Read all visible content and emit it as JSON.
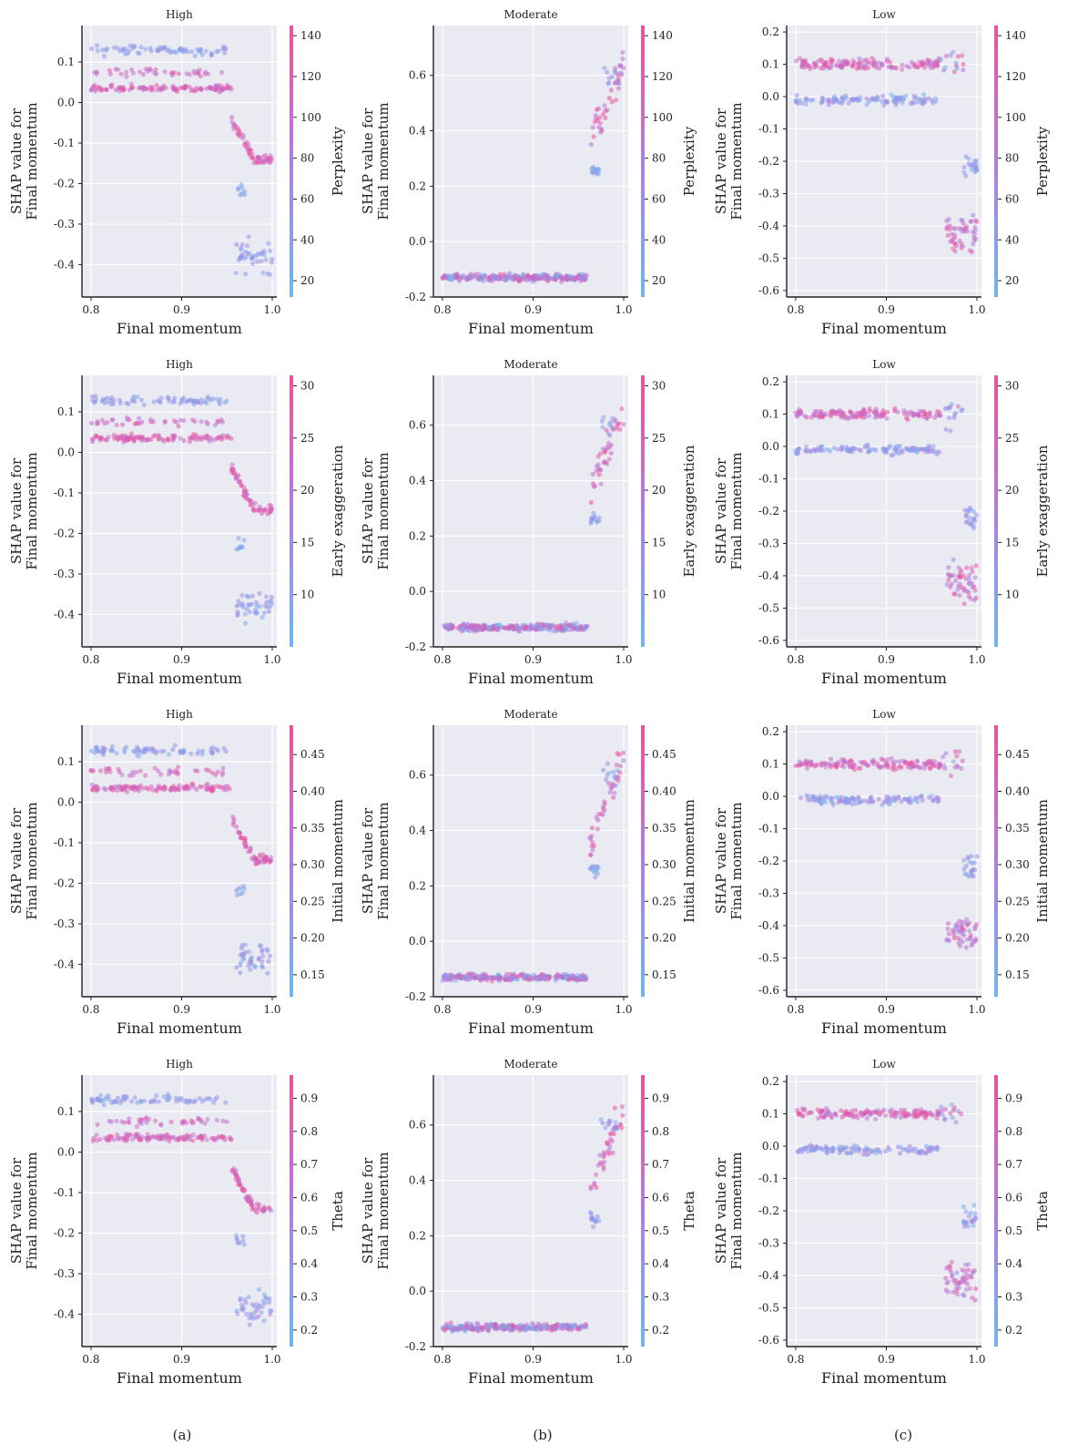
{
  "figure": {
    "panel_labels": [
      "(a)",
      "(b)",
      "(c)"
    ],
    "colorbar_colors": {
      "low": "#6fb6f0",
      "mid": "#b07ee0",
      "high": "#f0509a"
    },
    "plot_bg": "#eaeaf2"
  },
  "chart_data": [
    {
      "type": "scatter",
      "title": "High",
      "xlabel": "Final momentum",
      "ylabel": [
        "SHAP value for",
        "Final momentum"
      ],
      "xlim": [
        0.79,
        1.005
      ],
      "ylim": [
        -0.48,
        0.19
      ],
      "xticks": [
        "0.8",
        "0.9",
        "1.0"
      ],
      "yticks": [
        "0.1",
        "0.0",
        "-0.1",
        "-0.2",
        "-0.3",
        "-0.4"
      ],
      "colorbar": {
        "label": "Perplexity",
        "range": [
          12,
          145
        ],
        "ticks": [
          "20",
          "40",
          "60",
          "80",
          "100",
          "120",
          "140"
        ]
      },
      "profile": "high",
      "series": [
        {
          "name": "upper band",
          "x": [
            0.8,
            0.85,
            0.9,
            0.95
          ],
          "y": [
            0.13,
            0.14,
            0.12,
            0.12
          ]
        },
        {
          "name": "lower band",
          "x": [
            0.8,
            0.85,
            0.9,
            0.95
          ],
          "y": [
            0.03,
            0.04,
            0.035,
            0.04
          ]
        },
        {
          "name": "tail",
          "x": [
            0.96,
            0.98,
            1.0
          ],
          "y": [
            -0.08,
            -0.13,
            -0.14
          ]
        },
        {
          "name": "outliers",
          "x": [
            0.97,
            0.99,
            1.0
          ],
          "y": [
            -0.38,
            -0.42,
            -0.35
          ]
        }
      ]
    },
    {
      "type": "scatter",
      "title": "Moderate",
      "xlabel": "Final momentum",
      "ylabel": [
        "SHAP value for",
        "Final momentum"
      ],
      "xlim": [
        0.79,
        1.005
      ],
      "ylim": [
        -0.2,
        0.78
      ],
      "xticks": [
        "0.8",
        "0.9",
        "1.0"
      ],
      "yticks": [
        "0.6",
        "0.4",
        "0.2",
        "0.0",
        "-0.2"
      ],
      "colorbar": {
        "label": "Perplexity",
        "range": [
          12,
          145
        ],
        "ticks": [
          "20",
          "40",
          "60",
          "80",
          "100",
          "120",
          "140"
        ]
      },
      "profile": "moderate",
      "series": [
        {
          "name": "flat band",
          "x": [
            0.8,
            0.88,
            0.96
          ],
          "y": [
            -0.13,
            -0.13,
            -0.13
          ]
        },
        {
          "name": "rising",
          "x": [
            0.965,
            0.98,
            0.995
          ],
          "y": [
            0.3,
            0.5,
            0.65
          ]
        }
      ]
    },
    {
      "type": "scatter",
      "title": "Low",
      "xlabel": "Final momentum",
      "ylabel": [
        "SHAP value for",
        "Final momentum"
      ],
      "xlim": [
        0.79,
        1.005
      ],
      "ylim": [
        -0.62,
        0.22
      ],
      "xticks": [
        "0.8",
        "0.9",
        "1.0"
      ],
      "yticks": [
        "0.2",
        "0.1",
        "0.0",
        "-0.1",
        "-0.2",
        "-0.3",
        "-0.4",
        "-0.5",
        "-0.6"
      ],
      "colorbar": {
        "label": "Perplexity",
        "range": [
          12,
          145
        ],
        "ticks": [
          "20",
          "40",
          "60",
          "80",
          "100",
          "120",
          "140"
        ]
      },
      "profile": "low",
      "series": [
        {
          "name": "upper band",
          "x": [
            0.8,
            0.88,
            0.96
          ],
          "y": [
            0.11,
            0.1,
            0.12
          ]
        },
        {
          "name": "lower band",
          "x": [
            0.8,
            0.88,
            0.96
          ],
          "y": [
            0.0,
            -0.01,
            0.0
          ]
        },
        {
          "name": "tail",
          "x": [
            0.97,
            0.99,
            1.0
          ],
          "y": [
            -0.4,
            -0.45,
            -0.2
          ]
        }
      ]
    },
    {
      "type": "scatter",
      "title": "High",
      "xlabel": "Final momentum",
      "ylabel": [
        "SHAP value for",
        "Final momentum"
      ],
      "xlim": [
        0.79,
        1.005
      ],
      "ylim": [
        -0.48,
        0.19
      ],
      "xticks": [
        "0.8",
        "0.9",
        "1.0"
      ],
      "yticks": [
        "0.1",
        "0.0",
        "-0.1",
        "-0.2",
        "-0.3",
        "-0.4"
      ],
      "colorbar": {
        "label": "Early exaggeration",
        "range": [
          5,
          31
        ],
        "ticks": [
          "10",
          "15",
          "20",
          "25",
          "30"
        ]
      },
      "profile": "high",
      "series": [
        {
          "name": "upper band",
          "x": [
            0.8,
            0.85,
            0.9,
            0.95
          ],
          "y": [
            0.13,
            0.14,
            0.12,
            0.12
          ]
        },
        {
          "name": "lower band",
          "x": [
            0.8,
            0.85,
            0.9,
            0.95
          ],
          "y": [
            0.03,
            0.04,
            0.035,
            0.04
          ]
        },
        {
          "name": "tail",
          "x": [
            0.96,
            0.98,
            1.0
          ],
          "y": [
            -0.08,
            -0.13,
            -0.14
          ]
        },
        {
          "name": "outliers",
          "x": [
            0.97,
            0.99,
            1.0
          ],
          "y": [
            -0.38,
            -0.42,
            -0.35
          ]
        }
      ]
    },
    {
      "type": "scatter",
      "title": "Moderate",
      "xlabel": "Final momentum",
      "ylabel": [
        "SHAP value for",
        "Final momentum"
      ],
      "xlim": [
        0.79,
        1.005
      ],
      "ylim": [
        -0.2,
        0.78
      ],
      "xticks": [
        "0.8",
        "0.9",
        "1.0"
      ],
      "yticks": [
        "0.6",
        "0.4",
        "0.2",
        "0.0",
        "-0.2"
      ],
      "colorbar": {
        "label": "Early exaggeration",
        "range": [
          5,
          31
        ],
        "ticks": [
          "10",
          "15",
          "20",
          "25",
          "30"
        ]
      },
      "profile": "moderate",
      "series": [
        {
          "name": "flat band",
          "x": [
            0.8,
            0.88,
            0.96
          ],
          "y": [
            -0.13,
            -0.13,
            -0.13
          ]
        },
        {
          "name": "rising",
          "x": [
            0.965,
            0.98,
            0.995
          ],
          "y": [
            0.3,
            0.5,
            0.65
          ]
        }
      ]
    },
    {
      "type": "scatter",
      "title": "Low",
      "xlabel": "Final momentum",
      "ylabel": [
        "SHAP value for",
        "Final momentum"
      ],
      "xlim": [
        0.79,
        1.005
      ],
      "ylim": [
        -0.62,
        0.22
      ],
      "xticks": [
        "0.8",
        "0.9",
        "1.0"
      ],
      "yticks": [
        "0.2",
        "0.1",
        "0.0",
        "-0.1",
        "-0.2",
        "-0.3",
        "-0.4",
        "-0.5",
        "-0.6"
      ],
      "colorbar": {
        "label": "Early exaggeration",
        "range": [
          5,
          31
        ],
        "ticks": [
          "10",
          "15",
          "20",
          "25",
          "30"
        ]
      },
      "profile": "low",
      "series": [
        {
          "name": "upper band",
          "x": [
            0.8,
            0.88,
            0.96
          ],
          "y": [
            0.11,
            0.1,
            0.12
          ]
        },
        {
          "name": "lower band",
          "x": [
            0.8,
            0.88,
            0.96
          ],
          "y": [
            0.0,
            -0.01,
            0.0
          ]
        },
        {
          "name": "tail",
          "x": [
            0.97,
            0.99,
            1.0
          ],
          "y": [
            -0.4,
            -0.45,
            -0.2
          ]
        }
      ]
    },
    {
      "type": "scatter",
      "title": "High",
      "xlabel": "Final momentum",
      "ylabel": [
        "SHAP value for",
        "Final momentum"
      ],
      "xlim": [
        0.79,
        1.005
      ],
      "ylim": [
        -0.48,
        0.19
      ],
      "xticks": [
        "0.8",
        "0.9",
        "1.0"
      ],
      "yticks": [
        "0.1",
        "0.0",
        "-0.1",
        "-0.2",
        "-0.3",
        "-0.4"
      ],
      "colorbar": {
        "label": "Initial momentum",
        "range": [
          0.12,
          0.49
        ],
        "ticks": [
          "0.15",
          "0.20",
          "0.25",
          "0.30",
          "0.35",
          "0.40",
          "0.45"
        ]
      },
      "profile": "high",
      "series": [
        {
          "name": "upper band",
          "x": [
            0.8,
            0.85,
            0.9,
            0.95
          ],
          "y": [
            0.13,
            0.14,
            0.12,
            0.12
          ]
        },
        {
          "name": "lower band",
          "x": [
            0.8,
            0.85,
            0.9,
            0.95
          ],
          "y": [
            0.03,
            0.04,
            0.035,
            0.04
          ]
        },
        {
          "name": "tail",
          "x": [
            0.96,
            0.98,
            1.0
          ],
          "y": [
            -0.08,
            -0.13,
            -0.14
          ]
        },
        {
          "name": "outliers",
          "x": [
            0.97,
            0.99,
            1.0
          ],
          "y": [
            -0.38,
            -0.42,
            -0.35
          ]
        }
      ]
    },
    {
      "type": "scatter",
      "title": "Moderate",
      "xlabel": "Final momentum",
      "ylabel": [
        "SHAP value for",
        "Final momentum"
      ],
      "xlim": [
        0.79,
        1.005
      ],
      "ylim": [
        -0.2,
        0.78
      ],
      "xticks": [
        "0.8",
        "0.9",
        "1.0"
      ],
      "yticks": [
        "0.6",
        "0.4",
        "0.2",
        "0.0",
        "-0.2"
      ],
      "colorbar": {
        "label": "Initial momentum",
        "range": [
          0.12,
          0.49
        ],
        "ticks": [
          "0.15",
          "0.20",
          "0.25",
          "0.30",
          "0.35",
          "0.40",
          "0.45"
        ]
      },
      "profile": "moderate",
      "series": [
        {
          "name": "flat band",
          "x": [
            0.8,
            0.88,
            0.96
          ],
          "y": [
            -0.13,
            -0.13,
            -0.13
          ]
        },
        {
          "name": "rising",
          "x": [
            0.965,
            0.98,
            0.995
          ],
          "y": [
            0.3,
            0.5,
            0.65
          ]
        }
      ]
    },
    {
      "type": "scatter",
      "title": "Low",
      "xlabel": "Final momentum",
      "ylabel": [
        "SHAP value for",
        "Final momentum"
      ],
      "xlim": [
        0.79,
        1.005
      ],
      "ylim": [
        -0.62,
        0.22
      ],
      "xticks": [
        "0.8",
        "0.9",
        "1.0"
      ],
      "yticks": [
        "0.2",
        "0.1",
        "0.0",
        "-0.1",
        "-0.2",
        "-0.3",
        "-0.4",
        "-0.5",
        "-0.6"
      ],
      "colorbar": {
        "label": "Initial momentum",
        "range": [
          0.12,
          0.49
        ],
        "ticks": [
          "0.15",
          "0.20",
          "0.25",
          "0.30",
          "0.35",
          "0.40",
          "0.45"
        ]
      },
      "profile": "low",
      "series": [
        {
          "name": "upper band",
          "x": [
            0.8,
            0.88,
            0.96
          ],
          "y": [
            0.11,
            0.1,
            0.12
          ]
        },
        {
          "name": "lower band",
          "x": [
            0.8,
            0.88,
            0.96
          ],
          "y": [
            0.0,
            -0.01,
            0.0
          ]
        },
        {
          "name": "tail",
          "x": [
            0.97,
            0.99,
            1.0
          ],
          "y": [
            -0.4,
            -0.45,
            -0.2
          ]
        }
      ]
    },
    {
      "type": "scatter",
      "title": "High",
      "xlabel": "Final momentum",
      "ylabel": [
        "SHAP value for",
        "Final momentum"
      ],
      "xlim": [
        0.79,
        1.005
      ],
      "ylim": [
        -0.48,
        0.19
      ],
      "xticks": [
        "0.8",
        "0.9",
        "1.0"
      ],
      "yticks": [
        "0.1",
        "0.0",
        "-0.1",
        "-0.2",
        "-0.3",
        "-0.4"
      ],
      "colorbar": {
        "label": "Theta",
        "range": [
          0.15,
          0.97
        ],
        "ticks": [
          "0.2",
          "0.3",
          "0.4",
          "0.5",
          "0.6",
          "0.7",
          "0.8",
          "0.9"
        ]
      },
      "profile": "high",
      "series": [
        {
          "name": "upper band",
          "x": [
            0.8,
            0.85,
            0.9,
            0.95
          ],
          "y": [
            0.13,
            0.14,
            0.12,
            0.12
          ]
        },
        {
          "name": "lower band",
          "x": [
            0.8,
            0.85,
            0.9,
            0.95
          ],
          "y": [
            0.03,
            0.04,
            0.035,
            0.04
          ]
        },
        {
          "name": "tail",
          "x": [
            0.96,
            0.98,
            1.0
          ],
          "y": [
            -0.08,
            -0.13,
            -0.14
          ]
        },
        {
          "name": "outliers",
          "x": [
            0.97,
            0.99,
            1.0
          ],
          "y": [
            -0.38,
            -0.42,
            -0.35
          ]
        }
      ]
    },
    {
      "type": "scatter",
      "title": "Moderate",
      "xlabel": "Final momentum",
      "ylabel": [
        "SHAP value for",
        "Final momentum"
      ],
      "xlim": [
        0.79,
        1.005
      ],
      "ylim": [
        -0.2,
        0.78
      ],
      "xticks": [
        "0.8",
        "0.9",
        "1.0"
      ],
      "yticks": [
        "0.6",
        "0.4",
        "0.2",
        "0.0",
        "-0.2"
      ],
      "colorbar": {
        "label": "Theta",
        "range": [
          0.15,
          0.97
        ],
        "ticks": [
          "0.2",
          "0.3",
          "0.4",
          "0.5",
          "0.6",
          "0.7",
          "0.8",
          "0.9"
        ]
      },
      "profile": "moderate",
      "series": [
        {
          "name": "flat band",
          "x": [
            0.8,
            0.88,
            0.96
          ],
          "y": [
            -0.13,
            -0.13,
            -0.13
          ]
        },
        {
          "name": "rising",
          "x": [
            0.965,
            0.98,
            0.995
          ],
          "y": [
            0.3,
            0.5,
            0.65
          ]
        }
      ]
    },
    {
      "type": "scatter",
      "title": "Low",
      "xlabel": "Final momentum",
      "ylabel": [
        "SHAP value for",
        "Final momentum"
      ],
      "xlim": [
        0.79,
        1.005
      ],
      "ylim": [
        -0.62,
        0.22
      ],
      "xticks": [
        "0.8",
        "0.9",
        "1.0"
      ],
      "yticks": [
        "0.2",
        "0.1",
        "0.0",
        "-0.1",
        "-0.2",
        "-0.3",
        "-0.4",
        "-0.5",
        "-0.6"
      ],
      "colorbar": {
        "label": "Theta",
        "range": [
          0.15,
          0.97
        ],
        "ticks": [
          "0.2",
          "0.3",
          "0.4",
          "0.5",
          "0.6",
          "0.7",
          "0.8",
          "0.9"
        ]
      },
      "profile": "low",
      "series": [
        {
          "name": "upper band",
          "x": [
            0.8,
            0.88,
            0.96
          ],
          "y": [
            0.11,
            0.1,
            0.12
          ]
        },
        {
          "name": "lower band",
          "x": [
            0.8,
            0.88,
            0.96
          ],
          "y": [
            0.0,
            -0.01,
            0.0
          ]
        },
        {
          "name": "tail",
          "x": [
            0.97,
            0.99,
            1.0
          ],
          "y": [
            -0.4,
            -0.45,
            -0.2
          ]
        }
      ]
    }
  ]
}
